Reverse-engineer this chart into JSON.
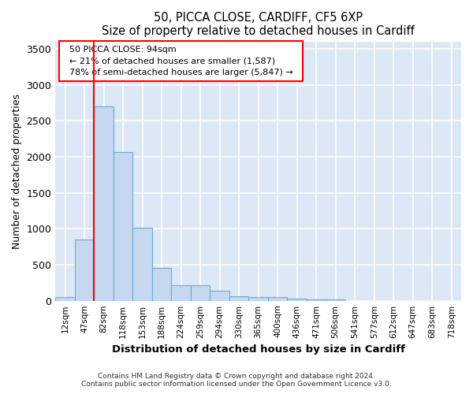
{
  "title1": "50, PICCA CLOSE, CARDIFF, CF5 6XP",
  "title2": "Size of property relative to detached houses in Cardiff",
  "xlabel": "Distribution of detached houses by size in Cardiff",
  "ylabel": "Number of detached properties",
  "categories": [
    "12sqm",
    "47sqm",
    "82sqm",
    "118sqm",
    "153sqm",
    "188sqm",
    "224sqm",
    "259sqm",
    "294sqm",
    "330sqm",
    "365sqm",
    "400sqm",
    "436sqm",
    "471sqm",
    "506sqm",
    "541sqm",
    "577sqm",
    "612sqm",
    "647sqm",
    "683sqm",
    "718sqm"
  ],
  "bar_heights": [
    55,
    850,
    2700,
    2060,
    1010,
    455,
    215,
    215,
    140,
    65,
    55,
    55,
    30,
    20,
    18,
    0,
    0,
    0,
    0,
    0,
    0
  ],
  "bar_color": "#c5d8f0",
  "bar_edge_color": "#6aaad4",
  "annotation_title": "50 PICCA CLOSE: 94sqm",
  "annotation_line1": "← 21% of detached houses are smaller (1,587)",
  "annotation_line2": "78% of semi-detached houses are larger (5,847) →",
  "red_line_index": 2,
  "ylim": [
    0,
    3600
  ],
  "yticks": [
    0,
    500,
    1000,
    1500,
    2000,
    2500,
    3000,
    3500
  ],
  "footer1": "Contains HM Land Registry data © Crown copyright and database right 2024.",
  "footer2": "Contains public sector information licensed under the Open Government Licence v3.0.",
  "fig_bg_color": "#ffffff",
  "plot_bg_color": "#dce8f5"
}
